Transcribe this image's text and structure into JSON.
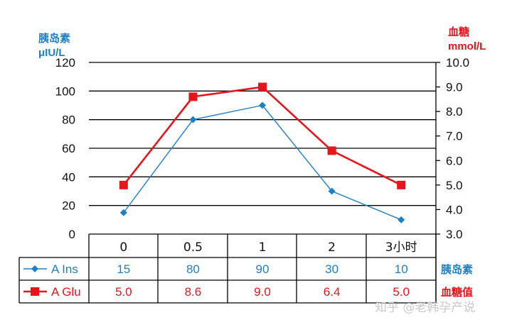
{
  "chart_data": {
    "type": "line",
    "title": "",
    "categories": [
      "0",
      "0.5",
      "1",
      "2",
      "3小时"
    ],
    "y_left": {
      "label_line1": "胰岛素",
      "label_line2": "μIU/L",
      "ylim": [
        0,
        120
      ],
      "ticks": [
        0,
        20,
        40,
        60,
        80,
        100,
        120
      ],
      "tick_labels": [
        "0",
        "20",
        "40",
        "60",
        "80",
        "100",
        "120"
      ]
    },
    "y_right": {
      "label_line1": "血糖",
      "label_line2": "mmol/L",
      "ylim": [
        3.0,
        10.0
      ],
      "ticks": [
        3.0,
        4.0,
        5.0,
        6.0,
        7.0,
        8.0,
        9.0,
        10.0
      ],
      "tick_labels": [
        "3.0",
        "4.0",
        "5.0",
        "6.0",
        "7.0",
        "8.0",
        "9.0",
        "10.0"
      ]
    },
    "series": [
      {
        "name": "A Ins",
        "axis": "left",
        "values": [
          15,
          80,
          90,
          30,
          10
        ],
        "display": [
          "15",
          "80",
          "90",
          "30",
          "10"
        ],
        "row_label": "胰岛素",
        "color": "#1f7fc5",
        "marker": "diamond"
      },
      {
        "name": "A Glu",
        "axis": "right",
        "values": [
          5.0,
          8.6,
          9.0,
          6.4,
          5.0
        ],
        "display": [
          "5.0",
          "8.6",
          "9.0",
          "6.4",
          "5.0"
        ],
        "row_label": "血糖值",
        "color": "#e8141c",
        "marker": "square"
      }
    ],
    "grid": true
  },
  "watermark": "知乎 @老韩孕产说"
}
